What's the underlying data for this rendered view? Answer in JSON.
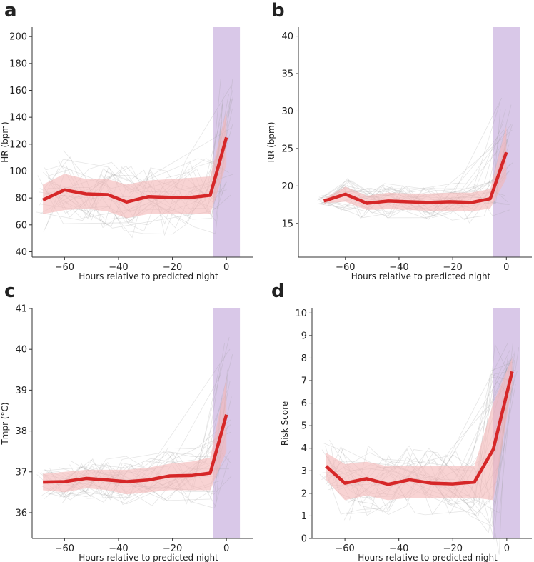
{
  "colors": {
    "mean_line": "#d62728",
    "band": "#f4b6b6",
    "night_shade": "#d9c8e8",
    "traces": "#9a9a9a"
  },
  "chart_data": [
    {
      "panel_label": "a",
      "type": "line",
      "xlabel": "Hours relative to predicted night",
      "ylabel": "HR (bpm)",
      "xlim": [
        -72,
        10
      ],
      "ylim": [
        36,
        207
      ],
      "xticks": [
        -60,
        -40,
        -20,
        0
      ],
      "xtick_labels": [
        "−60",
        "−40",
        "−20",
        "0"
      ],
      "yticks": [
        40,
        60,
        80,
        100,
        120,
        140,
        160,
        180,
        200
      ],
      "ytick_labels": [
        "40",
        "60",
        "80",
        "100",
        "120",
        "140",
        "160",
        "180",
        "200"
      ],
      "night_window": [
        -5,
        5
      ],
      "x": [
        -68,
        -60,
        -52,
        -44,
        -37,
        -29,
        -21,
        -13,
        -6,
        0
      ],
      "mean": [
        78.5,
        86,
        83,
        82.5,
        77,
        81,
        80.5,
        80.5,
        82,
        125
      ],
      "upper": [
        90,
        98,
        94,
        94,
        90,
        93,
        94,
        95,
        96,
        145
      ],
      "lower": [
        68,
        71,
        72,
        70,
        65,
        68,
        68,
        68,
        68,
        105
      ]
    },
    {
      "panel_label": "b",
      "type": "line",
      "xlabel": "Hours relative to predicted night",
      "ylabel": "RR (bpm)",
      "xlim": [
        -77.5,
        9.5
      ],
      "ylim": [
        10.5,
        41.2
      ],
      "xticks": [
        -60,
        -40,
        -20,
        0
      ],
      "xtick_labels": [
        "−60",
        "−40",
        "−20",
        "0"
      ],
      "yticks": [
        15,
        20,
        25,
        30,
        35,
        40
      ],
      "ytick_labels": [
        "15",
        "20",
        "25",
        "30",
        "35",
        "40"
      ],
      "night_window": [
        -5,
        5
      ],
      "x": [
        -68,
        -60,
        -52,
        -44,
        -37,
        -29,
        -21,
        -13,
        -6,
        0
      ],
      "mean": [
        18,
        18.9,
        17.7,
        18,
        17.9,
        17.8,
        17.9,
        17.8,
        18.3,
        24.5
      ],
      "upper": [
        18.3,
        19.9,
        18.7,
        19.1,
        19,
        19,
        19.1,
        19.1,
        19.6,
        28
      ],
      "lower": [
        17.7,
        17.9,
        16.8,
        16.9,
        16.8,
        16.7,
        16.7,
        16.6,
        17,
        21
      ]
    },
    {
      "panel_label": "c",
      "type": "line",
      "xlabel": "Hours relative to predicted night",
      "ylabel": "Tmpr (°C)",
      "xlim": [
        -72,
        10
      ],
      "ylim": [
        35.37,
        41
      ],
      "xticks": [
        -60,
        -40,
        -20,
        0
      ],
      "xtick_labels": [
        "−60",
        "−40",
        "−20",
        "0"
      ],
      "yticks": [
        36,
        37,
        38,
        39,
        40,
        41
      ],
      "ytick_labels": [
        "36",
        "37",
        "38",
        "39",
        "40",
        "41"
      ],
      "night_window": [
        -5,
        5
      ],
      "x": [
        -68,
        -60,
        -52,
        -44,
        -37,
        -29,
        -21,
        -13,
        -6,
        0
      ],
      "mean": [
        36.75,
        36.76,
        36.84,
        36.8,
        36.76,
        36.8,
        36.9,
        36.91,
        36.97,
        38.4
      ],
      "upper": [
        36.95,
        37.0,
        37.05,
        37.05,
        37.05,
        37.1,
        37.2,
        37.25,
        37.35,
        39.3
      ],
      "lower": [
        36.55,
        36.5,
        36.6,
        36.55,
        36.45,
        36.5,
        36.55,
        36.55,
        36.55,
        37.5
      ]
    },
    {
      "panel_label": "d",
      "type": "line",
      "xlabel": "Hours relative to predicted night",
      "ylabel": "Risk Score",
      "xlim": [
        -72.2,
        9.3
      ],
      "ylim": [
        0,
        10.2
      ],
      "xticks": [
        -60,
        -40,
        -20,
        0
      ],
      "xtick_labels": [
        "−60",
        "−40",
        "−20",
        "0"
      ],
      "yticks": [
        0,
        1,
        2,
        3,
        4,
        5,
        6,
        7,
        8,
        9,
        10
      ],
      "ytick_labels": [
        "0",
        "1",
        "2",
        "3",
        "4",
        "5",
        "6",
        "7",
        "8",
        "9",
        "10"
      ],
      "night_window": [
        -5,
        5
      ],
      "x": [
        -67,
        -60,
        -52,
        -44,
        -36,
        -28,
        -20,
        -12,
        -5,
        2
      ],
      "mean": [
        3.2,
        2.45,
        2.65,
        2.4,
        2.6,
        2.45,
        2.42,
        2.5,
        3.95,
        7.4
      ],
      "upper": [
        3.8,
        3.3,
        3.4,
        3.2,
        3.2,
        3.2,
        3.2,
        3.2,
        6.0,
        8.0
      ],
      "lower": [
        2.6,
        1.7,
        1.9,
        1.7,
        1.8,
        1.8,
        1.8,
        1.8,
        1.7,
        6.8
      ]
    }
  ]
}
